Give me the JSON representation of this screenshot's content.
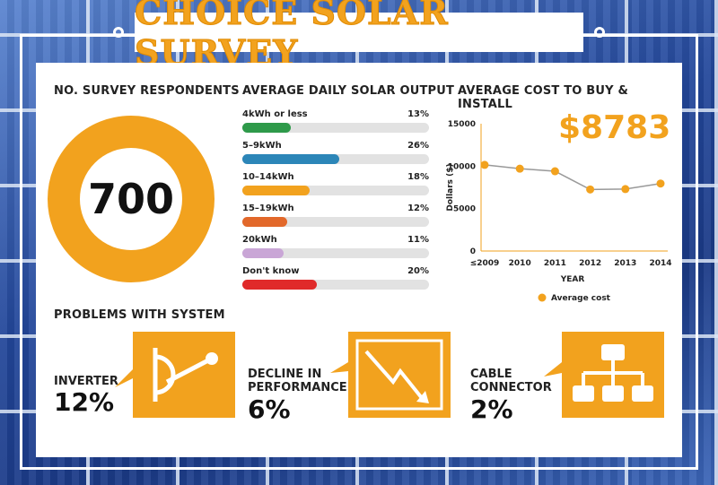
{
  "title": "CHOICE SOLAR SURVEY",
  "respondents": {
    "heading": "NO. SURVEY RESPONDENTS",
    "value": "700"
  },
  "output": {
    "heading": "AVERAGE DAILY SOLAR OUTPUT",
    "items": [
      {
        "label": "4kWh or less",
        "pct_text": "13%",
        "value": 13,
        "color": "#2e9a4a"
      },
      {
        "label": "5–9kWh",
        "pct_text": "26%",
        "value": 26,
        "color": "#2c86b8"
      },
      {
        "label": "10–14kWh",
        "pct_text": "18%",
        "value": 18,
        "color": "#f2a21e"
      },
      {
        "label": "15–19kWh",
        "pct_text": "12%",
        "value": 12,
        "color": "#e2682a"
      },
      {
        "label": "20kWh",
        "pct_text": "11%",
        "value": 11,
        "color": "#c9a6d6"
      },
      {
        "label": "Don't know",
        "pct_text": "20%",
        "value": 20,
        "color": "#e02a2a"
      }
    ]
  },
  "cost": {
    "heading": "AVERAGE COST TO BUY & INSTALL",
    "big_value": "$8783"
  },
  "problems": {
    "heading": "PROBLEMS WITH SYSTEM",
    "items": [
      {
        "label_lines": [
          "INVERTER"
        ],
        "pct": "12%",
        "icon": "inverter-switch-icon"
      },
      {
        "label_lines": [
          "DECLINE IN",
          "PERFORMANCE"
        ],
        "pct": "6%",
        "icon": "declining-trend-icon"
      },
      {
        "label_lines": [
          "CABLE",
          "CONNECTOR"
        ],
        "pct": "2%",
        "icon": "cable-connector-icon"
      }
    ]
  },
  "colors": {
    "accent": "#f2a21e",
    "line": "#999999"
  },
  "chart_data": [
    {
      "type": "pie",
      "title": "NO. SURVEY RESPONDENTS",
      "center_label": "700",
      "values": [
        700
      ]
    },
    {
      "type": "bar",
      "title": "AVERAGE DAILY SOLAR OUTPUT",
      "categories": [
        "4kWh or less",
        "5–9kWh",
        "10–14kWh",
        "15–19kWh",
        "20kWh",
        "Don't know"
      ],
      "values": [
        13,
        26,
        18,
        12,
        11,
        20
      ],
      "ylim": [
        0,
        50
      ]
    },
    {
      "type": "line",
      "title": "AVERAGE COST TO BUY & INSTALL",
      "x_tick_labels": [
        "≤2009",
        "2010",
        "2011",
        "2012",
        "2013",
        "2014"
      ],
      "series": [
        {
          "name": "Average cost",
          "values": [
            10150,
            9700,
            9400,
            7250,
            7300,
            7950
          ]
        }
      ],
      "xlabel": "YEAR",
      "ylabel": "Dollars ($)",
      "ylim": [
        0,
        15000
      ],
      "yticks": [
        0,
        5000,
        10000,
        15000
      ],
      "grid": false,
      "legend": "bottom"
    }
  ]
}
